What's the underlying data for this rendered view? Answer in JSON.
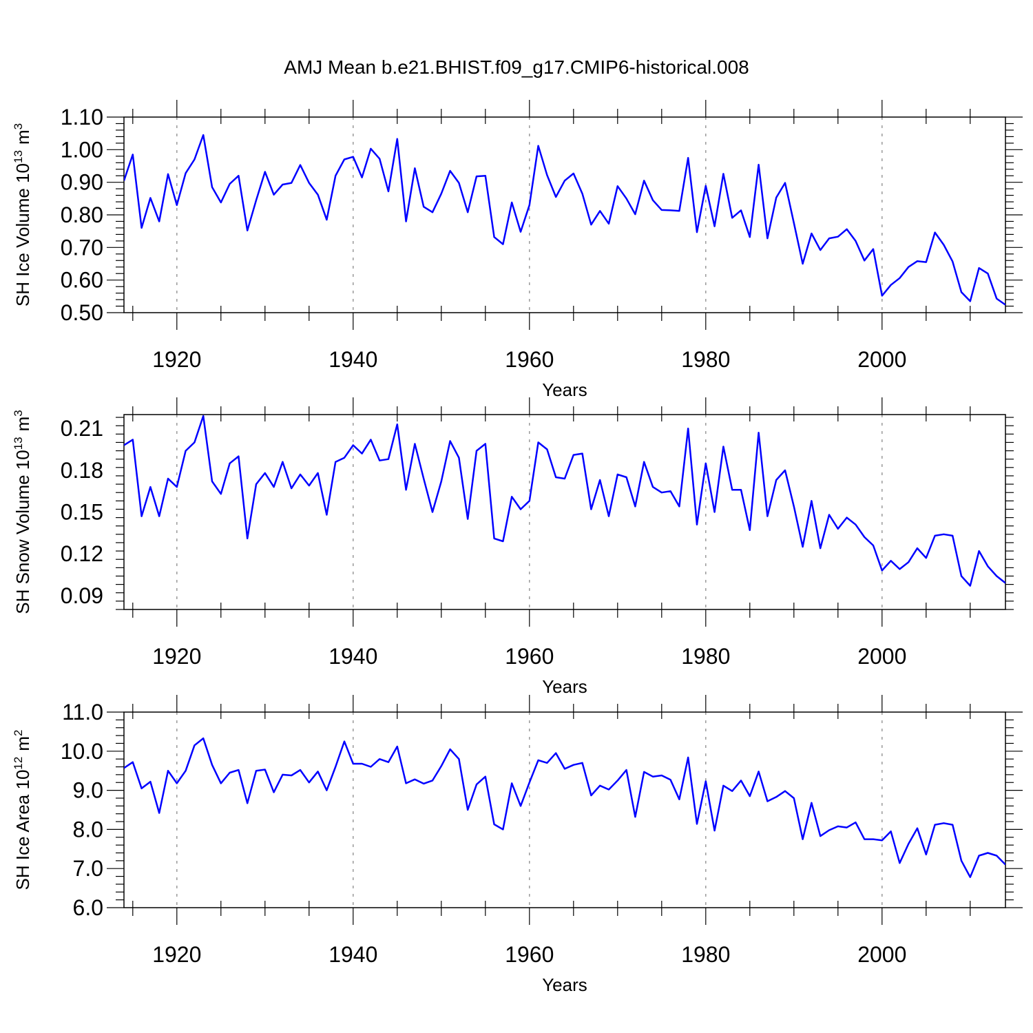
{
  "title": "AMJ Mean b.e21.BHIST.f09_g17.CMIP6-historical.008",
  "line_color": "#0000ff",
  "chart_data": [
    {
      "type": "line",
      "name": "ice-volume",
      "ylabel": "SH Ice Volume 10",
      "ylabel_exp": "13",
      "ylabel_unit": "m",
      "ylabel_unit_exp": "3",
      "xlabel": "Years",
      "xlim": [
        1914,
        2014
      ],
      "ylim": [
        0.5,
        1.1
      ],
      "yticks": [
        0.5,
        0.6,
        0.7,
        0.8,
        0.9,
        1.0,
        1.1
      ],
      "ytick_labels": [
        "0.50",
        "0.60",
        "0.70",
        "0.80",
        "0.90",
        "1.00",
        "1.10"
      ],
      "xticks": [
        1920,
        1940,
        1960,
        1980,
        2000
      ],
      "xtick_labels": [
        "1920",
        "1940",
        "1960",
        "1980",
        "2000"
      ],
      "start_year": 1914,
      "values": [
        0.905,
        0.985,
        0.76,
        0.852,
        0.78,
        0.925,
        0.83,
        0.928,
        0.97,
        1.045,
        0.885,
        0.838,
        0.895,
        0.92,
        0.752,
        0.845,
        0.932,
        0.862,
        0.893,
        0.898,
        0.953,
        0.898,
        0.862,
        0.785,
        0.92,
        0.97,
        0.978,
        0.915,
        1.003,
        0.972,
        0.872,
        1.033,
        0.78,
        0.943,
        0.825,
        0.808,
        0.865,
        0.935,
        0.898,
        0.808,
        0.918,
        0.92,
        0.732,
        0.71,
        0.838,
        0.748,
        0.83,
        1.012,
        0.922,
        0.855,
        0.905,
        0.927,
        0.865,
        0.77,
        0.812,
        0.773,
        0.888,
        0.85,
        0.802,
        0.905,
        0.845,
        0.815,
        0.814,
        0.812,
        0.975,
        0.747,
        0.889,
        0.765,
        0.926,
        0.791,
        0.814,
        0.732,
        0.954,
        0.728,
        0.853,
        0.898,
        0.775,
        0.65,
        0.743,
        0.692,
        0.728,
        0.733,
        0.756,
        0.72,
        0.66,
        0.695,
        0.552,
        0.585,
        0.606,
        0.64,
        0.658,
        0.655,
        0.746,
        0.708,
        0.657,
        0.563,
        0.535,
        0.637,
        0.62,
        0.543,
        0.524
      ]
    },
    {
      "type": "line",
      "name": "snow-volume",
      "ylabel": "SH Snow Volume 10",
      "ylabel_exp": "13",
      "ylabel_unit": "m",
      "ylabel_unit_exp": "3",
      "xlabel": "Years",
      "xlim": [
        1914,
        2014
      ],
      "ylim": [
        0.08,
        0.22
      ],
      "yticks": [
        0.09,
        0.12,
        0.15,
        0.18,
        0.21
      ],
      "ytick_labels": [
        "0.09",
        "0.12",
        "0.15",
        "0.18",
        "0.21"
      ],
      "xticks": [
        1920,
        1940,
        1960,
        1980,
        2000
      ],
      "xtick_labels": [
        "1920",
        "1940",
        "1960",
        "1980",
        "2000"
      ],
      "start_year": 1914,
      "values": [
        0.198,
        0.202,
        0.147,
        0.168,
        0.147,
        0.174,
        0.168,
        0.194,
        0.2,
        0.219,
        0.172,
        0.163,
        0.185,
        0.19,
        0.131,
        0.17,
        0.178,
        0.168,
        0.186,
        0.167,
        0.177,
        0.169,
        0.178,
        0.148,
        0.186,
        0.189,
        0.198,
        0.192,
        0.202,
        0.187,
        0.188,
        0.213,
        0.166,
        0.199,
        0.174,
        0.15,
        0.172,
        0.201,
        0.189,
        0.145,
        0.194,
        0.199,
        0.131,
        0.129,
        0.161,
        0.152,
        0.158,
        0.2,
        0.195,
        0.175,
        0.174,
        0.191,
        0.192,
        0.152,
        0.173,
        0.147,
        0.177,
        0.175,
        0.154,
        0.186,
        0.168,
        0.164,
        0.165,
        0.154,
        0.21,
        0.141,
        0.185,
        0.15,
        0.197,
        0.166,
        0.166,
        0.137,
        0.207,
        0.147,
        0.173,
        0.18,
        0.154,
        0.125,
        0.158,
        0.124,
        0.148,
        0.138,
        0.146,
        0.141,
        0.132,
        0.126,
        0.108,
        0.115,
        0.109,
        0.114,
        0.124,
        0.117,
        0.133,
        0.134,
        0.133,
        0.104,
        0.097,
        0.122,
        0.111,
        0.104,
        0.099
      ]
    },
    {
      "type": "line",
      "name": "ice-area",
      "ylabel": "SH Ice Area 10",
      "ylabel_exp": "12",
      "ylabel_unit": "m",
      "ylabel_unit_exp": "2",
      "xlabel": "Years",
      "xlim": [
        1914,
        2014
      ],
      "ylim": [
        6.0,
        11.0
      ],
      "yticks": [
        6.0,
        7.0,
        8.0,
        9.0,
        10.0,
        11.0
      ],
      "ytick_labels": [
        "6.0",
        "7.0",
        "8.0",
        "9.0",
        "10.0",
        "11.0"
      ],
      "xticks": [
        1920,
        1940,
        1960,
        1980,
        2000
      ],
      "xtick_labels": [
        "1920",
        "1940",
        "1960",
        "1980",
        "2000"
      ],
      "start_year": 1914,
      "values": [
        9.57,
        9.72,
        9.05,
        9.22,
        8.42,
        9.5,
        9.18,
        9.5,
        10.15,
        10.33,
        9.65,
        9.18,
        9.45,
        9.52,
        8.67,
        9.5,
        9.53,
        8.95,
        9.4,
        9.38,
        9.52,
        9.2,
        9.48,
        9.0,
        9.6,
        10.25,
        9.68,
        9.68,
        9.6,
        9.8,
        9.72,
        10.12,
        9.18,
        9.28,
        9.17,
        9.25,
        9.62,
        10.05,
        9.8,
        8.5,
        9.15,
        9.35,
        8.13,
        8.0,
        9.18,
        8.6,
        9.2,
        9.77,
        9.7,
        9.95,
        9.55,
        9.65,
        9.7,
        8.87,
        9.12,
        9.02,
        9.25,
        9.52,
        8.32,
        9.47,
        9.35,
        9.38,
        9.27,
        8.77,
        9.84,
        8.14,
        9.23,
        7.97,
        9.12,
        8.98,
        9.25,
        8.85,
        9.48,
        8.72,
        8.83,
        8.98,
        8.8,
        7.75,
        8.68,
        7.83,
        7.98,
        8.08,
        8.05,
        8.18,
        7.75,
        7.75,
        7.72,
        7.95,
        7.14,
        7.63,
        8.03,
        7.36,
        8.12,
        8.16,
        8.12,
        7.2,
        6.78,
        7.33,
        7.4,
        7.33,
        7.1
      ]
    }
  ]
}
